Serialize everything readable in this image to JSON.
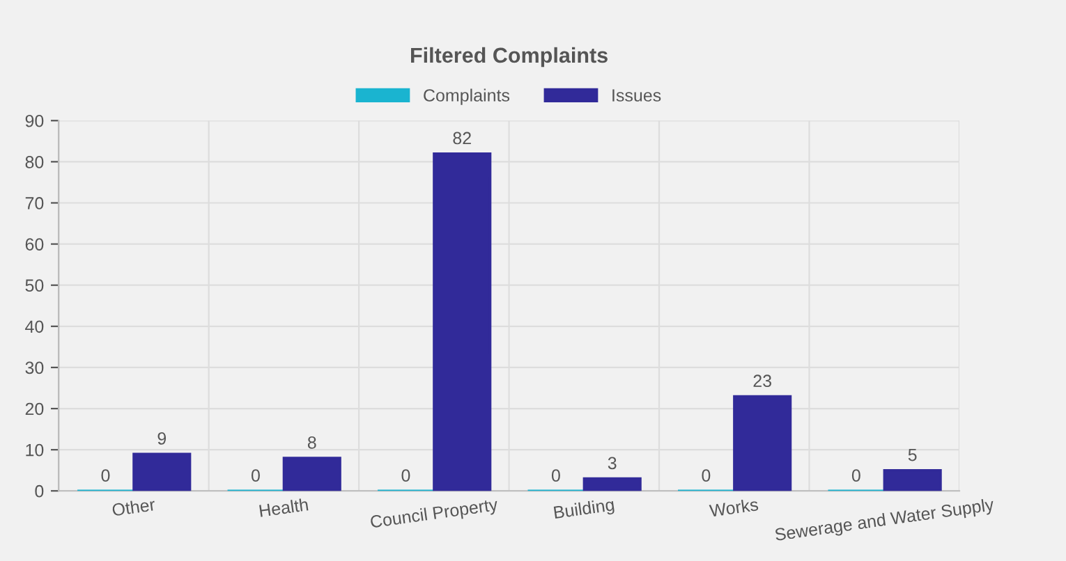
{
  "chart_data": {
    "type": "bar",
    "title": "Filtered Complaints",
    "categories": [
      "Other",
      "Health",
      "Council Property",
      "Building",
      "Works",
      "Sewerage and Water Supply"
    ],
    "series": [
      {
        "name": "Complaints",
        "color": "#1ab4d0",
        "values": [
          0,
          0,
          0,
          0,
          0,
          0
        ]
      },
      {
        "name": "Issues",
        "color": "#312a99",
        "values": [
          9,
          8,
          82,
          3,
          23,
          5
        ]
      }
    ],
    "ylim": [
      0,
      90
    ],
    "yticks": [
      0,
      10,
      20,
      30,
      40,
      50,
      60,
      70,
      80,
      90
    ],
    "grid": true,
    "legend": "top",
    "data_labels": true
  }
}
